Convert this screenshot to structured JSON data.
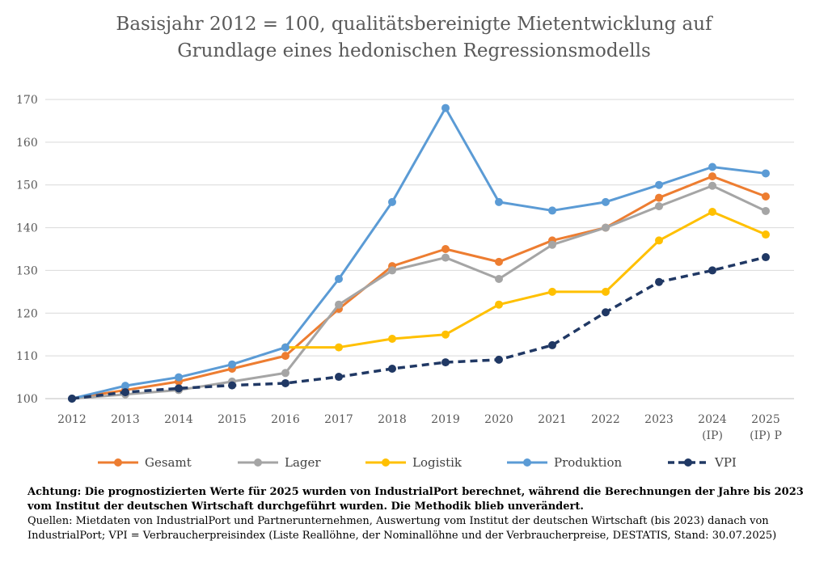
{
  "chart_data": {
    "type": "line",
    "title": "Basisjahr 2012 = 100, qualitätsbereinigte Mietentwicklung auf Grundlage eines hedonischen Regressionsmodells",
    "title_lines": [
      "Basisjahr 2012 = 100, qualitätsbereinigte Mietentwicklung auf",
      "Grundlage eines hedonischen Regressionsmodells"
    ],
    "categories": [
      [
        "2012"
      ],
      [
        "2013"
      ],
      [
        "2014"
      ],
      [
        "2015"
      ],
      [
        "2016"
      ],
      [
        "2017"
      ],
      [
        "2018"
      ],
      [
        "2019"
      ],
      [
        "2020"
      ],
      [
        "2021"
      ],
      [
        "2022"
      ],
      [
        "2023"
      ],
      [
        "2024",
        "(IP)"
      ],
      [
        "2025",
        "(IP) P"
      ]
    ],
    "ylim": [
      100,
      170
    ],
    "yticks": [
      100,
      110,
      120,
      130,
      140,
      150,
      160,
      170
    ],
    "grid": true,
    "legend_position": "bottom",
    "series": [
      {
        "name": "Gesamt",
        "color": "#ED7D31",
        "dashed": false,
        "values": [
          100,
          102,
          104,
          107,
          110,
          121,
          131,
          135,
          132,
          137,
          140,
          147,
          152,
          147.3
        ]
      },
      {
        "name": "Lager",
        "color": "#A5A5A5",
        "dashed": false,
        "values": [
          100,
          101,
          102,
          104,
          106,
          122,
          130,
          133,
          128,
          136,
          140,
          145,
          149.8,
          143.9
        ]
      },
      {
        "name": "Logistik",
        "color": "#FFC000",
        "dashed": false,
        "values": [
          null,
          null,
          null,
          null,
          112,
          112,
          114,
          115,
          122,
          125,
          125,
          137,
          143.7,
          138.4
        ]
      },
      {
        "name": "Produktion",
        "color": "#5B9BD5",
        "dashed": false,
        "values": [
          100,
          103,
          105,
          108,
          112,
          128,
          146,
          168,
          146,
          144,
          146,
          150,
          154.2,
          152.7
        ]
      },
      {
        "name": "VPI",
        "color": "#203864",
        "dashed": true,
        "values": [
          100,
          101.5,
          102.4,
          103.1,
          103.6,
          105.1,
          107,
          108.5,
          109.1,
          112.5,
          120.2,
          127.3,
          130,
          133.1
        ]
      }
    ]
  },
  "notes": {
    "bold": "Achtung: Die prognostizierten Werte für 2025 wurden von IndustrialPort berechnet, während die Berechnungen der Jahre bis 2023 vom Institut der deutschen Wirtschaft durchgeführt wurden. Die Methodik blieb unverändert.",
    "sources": "Quellen: Mietdaten von IndustrialPort und Partnerunternehmen, Auswertung vom Institut der deutschen Wirtschaft (bis 2023) danach von IndustrialPort; VPI = Verbraucherpreisindex (Liste Reallöhne, der Nominallöhne und der Verbraucherpreise, DESTATIS, Stand: 30.07.2025)"
  }
}
